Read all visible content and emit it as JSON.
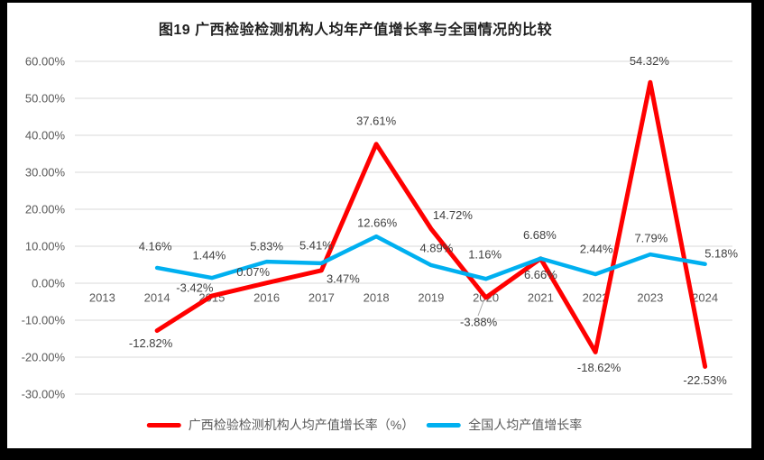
{
  "page": {
    "border_color": "#000000",
    "background_color": "#ffffff"
  },
  "chart_data": {
    "type": "line",
    "title": "图19 广西检验检测机构人均年产值增长率与全国情况的比较",
    "categories": [
      "2013",
      "2014",
      "2015",
      "2016",
      "2017",
      "2018",
      "2019",
      "2020",
      "2021",
      "2022",
      "2023",
      "2024"
    ],
    "series": [
      {
        "name": "广西检验检测机构人均产值增长率（%）",
        "color": "#FF0000",
        "values": [
          null,
          -12.82,
          -3.42,
          0.07,
          3.47,
          37.61,
          14.72,
          -3.88,
          6.66,
          -18.62,
          54.32,
          -22.53
        ],
        "labels": [
          null,
          "-12.82%",
          "-3.42%",
          "0.07%",
          "3.47%",
          "37.61%",
          "14.72%",
          "-3.88%",
          "6.66%",
          "-18.62%",
          "54.32%",
          "-22.53%"
        ]
      },
      {
        "name": "全国人均产值增长率",
        "color": "#00B0F0",
        "values": [
          null,
          4.16,
          1.44,
          5.83,
          5.41,
          12.66,
          4.89,
          1.16,
          6.68,
          2.44,
          7.79,
          5.18
        ],
        "labels": [
          null,
          "4.16%",
          "1.44%",
          "5.83%",
          "5.41%",
          "12.66%",
          "4.89%",
          "1.16%",
          "6.68%",
          "2.44%",
          "7.79%",
          "5.18%"
        ]
      }
    ],
    "y_axis": {
      "ticks": [
        {
          "value": 60,
          "label": "60.00%"
        },
        {
          "value": 50,
          "label": "50.00%"
        },
        {
          "value": 40,
          "label": "40.00%"
        },
        {
          "value": 30,
          "label": "30.00%"
        },
        {
          "value": 20,
          "label": "20.00%"
        },
        {
          "value": 10,
          "label": "10.00%"
        },
        {
          "value": 0,
          "label": "0.00%"
        },
        {
          "value": -10,
          "label": "-10.00%"
        },
        {
          "value": -20,
          "label": "-20.00%"
        },
        {
          "value": -30,
          "label": "-30.00%"
        }
      ]
    },
    "ylim": [
      -30,
      60
    ],
    "grid": "horizontal",
    "legend_position": "bottom",
    "gridline_color": "#D9D9D9",
    "axis_text_color": "#595959",
    "data_label_color": "#404040",
    "leader_line_color": "#A6A6A6"
  }
}
